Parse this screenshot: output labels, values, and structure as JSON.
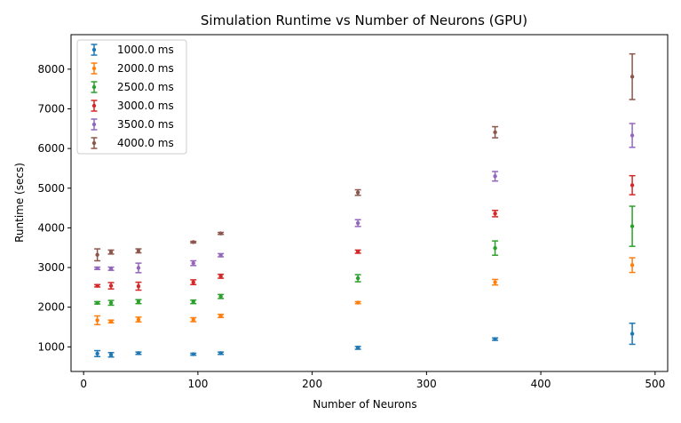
{
  "chart_data": {
    "type": "scatter",
    "title": "Simulation Runtime vs Number of Neurons (GPU)",
    "xlabel": "Number of Neurons",
    "ylabel": "Runtime (secs)",
    "xlim": [
      -11,
      511
    ],
    "ylim": [
      380,
      8870
    ],
    "xticks": [
      0,
      100,
      200,
      300,
      400,
      500
    ],
    "yticks": [
      1000,
      2000,
      3000,
      4000,
      5000,
      6000,
      7000,
      8000
    ],
    "legend_position": "top-left",
    "x": [
      12,
      24,
      48,
      96,
      120,
      240,
      360,
      480
    ],
    "series": [
      {
        "name": "1000.0 ms",
        "color": "#1f77b4",
        "values": [
          830,
          800,
          840,
          815,
          840,
          975,
          1195,
          1330
        ],
        "errors": [
          75,
          55,
          30,
          25,
          30,
          35,
          30,
          265
        ]
      },
      {
        "name": "2000.0 ms",
        "color": "#ff7f0e",
        "values": [
          1670,
          1640,
          1690,
          1685,
          1780,
          2115,
          2630,
          3060
        ],
        "errors": [
          110,
          35,
          60,
          50,
          40,
          25,
          70,
          185
        ]
      },
      {
        "name": "2500.0 ms",
        "color": "#2ca02c",
        "values": [
          2110,
          2110,
          2140,
          2135,
          2270,
          2730,
          3490,
          4040
        ],
        "errors": [
          30,
          60,
          50,
          45,
          50,
          90,
          180,
          505
        ]
      },
      {
        "name": "3000.0 ms",
        "color": "#d62728",
        "values": [
          2540,
          2540,
          2530,
          2630,
          2780,
          3400,
          4360,
          5075
        ],
        "errors": [
          30,
          80,
          100,
          60,
          50,
          40,
          80,
          240
        ]
      },
      {
        "name": "3500.0 ms",
        "color": "#9467bd",
        "values": [
          2980,
          2970,
          2990,
          3110,
          3310,
          4120,
          5300,
          6330
        ],
        "errors": [
          30,
          40,
          120,
          60,
          40,
          85,
          120,
          300
        ]
      },
      {
        "name": "4000.0 ms",
        "color": "#8c564b",
        "values": [
          3320,
          3390,
          3420,
          3640,
          3860,
          4890,
          6410,
          7810
        ],
        "errors": [
          150,
          50,
          50,
          20,
          25,
          70,
          140,
          575
        ]
      }
    ]
  }
}
